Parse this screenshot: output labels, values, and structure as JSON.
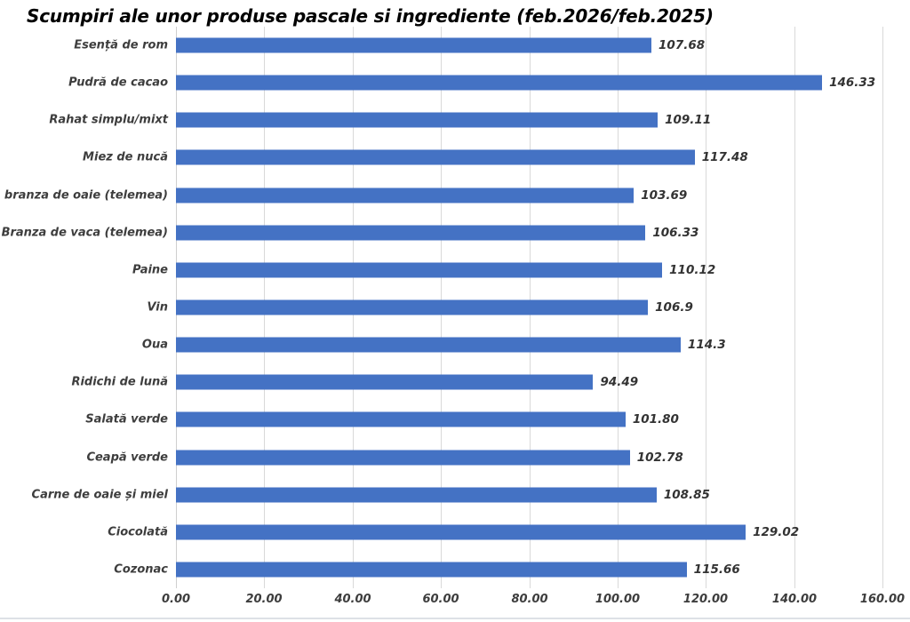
{
  "chart_data": {
    "type": "bar",
    "orientation": "horizontal",
    "title": "Scumpiri ale unor produse pascale si ingrediente (feb.2026/feb.2025)",
    "categories": [
      "Esență de rom",
      "Pudră de cacao",
      "Rahat simplu/mixt",
      "Miez de nucă",
      "branza de oaie (telemea)",
      "Branza de vaca (telemea)",
      "Paine",
      "Vin",
      "Oua",
      "Ridichi de lună",
      "Salată verde",
      "Ceapă verde",
      "Carne de oaie și miel",
      "Ciocolată",
      "Cozonac"
    ],
    "values": [
      107.68,
      146.33,
      109.11,
      117.48,
      103.69,
      106.33,
      110.12,
      106.9,
      114.3,
      94.49,
      101.8,
      102.78,
      108.85,
      129.02,
      115.66
    ],
    "value_labels": [
      "107.68",
      "146.33",
      "109.11",
      "117.48",
      "103.69",
      "106.33",
      "110.12",
      "106.9",
      "114.3",
      "94.49",
      "101.80",
      "102.78",
      "108.85",
      "129.02",
      "115.66"
    ],
    "xlabel": "",
    "ylabel": "",
    "xlim": [
      0,
      160
    ],
    "x_tick_step": 20,
    "x_tick_labels": [
      "0.00",
      "20.00",
      "40.00",
      "60.00",
      "80.00",
      "100.00",
      "120.00",
      "140.00",
      "160.00"
    ],
    "grid": true,
    "legend": "none",
    "bar_color": "#4472C4",
    "gridline_color": "#d9d9d9",
    "label_color": "#3d3d3d"
  }
}
